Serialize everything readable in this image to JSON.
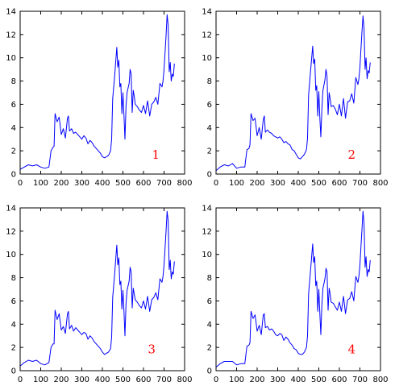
{
  "chart_data": [
    {
      "type": "line",
      "annotation": "1",
      "line_color": "#0000ff",
      "annotation_color": "#ff0000",
      "grid": false,
      "legend": "none",
      "xlim": [
        0,
        800
      ],
      "ylim": [
        0,
        14
      ],
      "xticks": [
        0,
        100,
        200,
        300,
        400,
        500,
        600,
        700,
        800
      ],
      "yticks": [
        0,
        2,
        4,
        6,
        8,
        10,
        12,
        14
      ],
      "annotation_pos": [
        660,
        1.3
      ],
      "x": [
        0,
        20,
        40,
        60,
        80,
        100,
        120,
        140,
        150,
        160,
        165,
        170,
        180,
        190,
        200,
        210,
        220,
        230,
        235,
        240,
        250,
        260,
        270,
        280,
        290,
        300,
        310,
        320,
        330,
        340,
        350,
        360,
        370,
        380,
        390,
        400,
        410,
        420,
        430,
        440,
        445,
        450,
        460,
        470,
        475,
        480,
        485,
        490,
        495,
        500,
        505,
        510,
        515,
        520,
        530,
        535,
        540,
        545,
        550,
        555,
        560,
        570,
        580,
        590,
        600,
        610,
        620,
        630,
        640,
        650,
        660,
        670,
        680,
        690,
        695,
        700,
        705,
        710,
        715,
        720,
        725,
        730,
        735,
        740,
        745,
        750
      ],
      "y": [
        0.4,
        0.6,
        0.8,
        0.7,
        0.8,
        0.6,
        0.5,
        0.6,
        2.0,
        2.3,
        2.4,
        5.2,
        4.5,
        4.9,
        3.4,
        3.9,
        3.1,
        4.8,
        5.0,
        3.7,
        3.9,
        3.5,
        3.6,
        3.4,
        3.2,
        3.0,
        3.3,
        3.1,
        2.6,
        2.9,
        2.7,
        2.4,
        2.2,
        2.0,
        1.8,
        1.5,
        1.4,
        1.5,
        1.6,
        2.0,
        3.0,
        6.5,
        8.5,
        10.9,
        9.2,
        9.8,
        7.5,
        7.8,
        5.2,
        7.0,
        5.0,
        3.0,
        5.8,
        7.0,
        7.8,
        9.0,
        8.6,
        5.3,
        7.2,
        6.7,
        6.0,
        5.8,
        5.5,
        5.3,
        5.9,
        5.2,
        6.3,
        5.0,
        6.0,
        6.2,
        6.6,
        6.0,
        7.8,
        7.5,
        8.0,
        9.0,
        10.5,
        11.9,
        13.7,
        12.8,
        8.8,
        9.6,
        8.0,
        8.6,
        8.4,
        9.5
      ]
    },
    {
      "type": "line",
      "annotation": "2",
      "line_color": "#0000ff",
      "annotation_color": "#ff0000",
      "grid": false,
      "legend": "none",
      "xlim": [
        0,
        800
      ],
      "ylim": [
        0,
        14
      ],
      "xticks": [
        0,
        100,
        200,
        300,
        400,
        500,
        600,
        700,
        800
      ],
      "yticks": [
        0,
        2,
        4,
        6,
        8,
        10,
        12,
        14
      ],
      "annotation_pos": [
        660,
        1.3
      ],
      "x": [
        0,
        20,
        40,
        60,
        80,
        100,
        120,
        140,
        150,
        160,
        165,
        170,
        180,
        190,
        200,
        210,
        220,
        230,
        235,
        240,
        250,
        260,
        270,
        280,
        290,
        300,
        310,
        320,
        330,
        340,
        350,
        360,
        370,
        380,
        390,
        400,
        410,
        420,
        430,
        440,
        445,
        450,
        460,
        470,
        475,
        480,
        485,
        490,
        495,
        500,
        505,
        510,
        515,
        520,
        530,
        535,
        540,
        545,
        550,
        555,
        560,
        570,
        580,
        590,
        600,
        610,
        620,
        630,
        640,
        650,
        660,
        670,
        680,
        690,
        695,
        700,
        705,
        710,
        715,
        720,
        725,
        730,
        735,
        740,
        745,
        750
      ],
      "y": [
        0.3,
        0.6,
        0.8,
        0.7,
        0.9,
        0.5,
        0.6,
        0.6,
        2.1,
        2.2,
        2.5,
        5.2,
        4.6,
        4.8,
        3.3,
        4.0,
        3.0,
        4.7,
        5.0,
        3.6,
        3.8,
        3.6,
        3.5,
        3.3,
        3.2,
        3.1,
        3.2,
        3.0,
        2.7,
        2.8,
        2.6,
        2.5,
        2.1,
        2.0,
        1.7,
        1.4,
        1.3,
        1.5,
        1.7,
        2.1,
        3.1,
        6.8,
        8.9,
        11.0,
        9.5,
        9.9,
        7.2,
        7.6,
        5.0,
        7.1,
        4.8,
        3.2,
        5.6,
        7.2,
        8.1,
        9.0,
        8.4,
        5.1,
        7.0,
        6.5,
        5.8,
        5.9,
        5.6,
        5.1,
        6.0,
        5.0,
        6.5,
        4.8,
        6.2,
        6.3,
        6.9,
        6.1,
        8.3,
        7.7,
        8.2,
        9.2,
        10.8,
        12.2,
        13.6,
        12.5,
        9.0,
        10.0,
        8.2,
        8.9,
        8.7,
        9.6
      ]
    },
    {
      "type": "line",
      "annotation": "3",
      "line_color": "#0000ff",
      "annotation_color": "#ff0000",
      "grid": false,
      "legend": "none",
      "xlim": [
        0,
        800
      ],
      "ylim": [
        0,
        14
      ],
      "xticks": [
        0,
        100,
        200,
        300,
        400,
        500,
        600,
        700,
        800
      ],
      "yticks": [
        0,
        2,
        4,
        6,
        8,
        10,
        12,
        14
      ],
      "annotation_pos": [
        640,
        1.5
      ],
      "x": [
        0,
        20,
        40,
        60,
        80,
        100,
        120,
        140,
        150,
        160,
        165,
        170,
        180,
        190,
        200,
        210,
        220,
        230,
        235,
        240,
        250,
        260,
        270,
        280,
        290,
        300,
        310,
        320,
        330,
        340,
        350,
        360,
        370,
        380,
        390,
        400,
        410,
        420,
        430,
        440,
        445,
        450,
        460,
        470,
        475,
        480,
        485,
        490,
        495,
        500,
        505,
        510,
        515,
        520,
        530,
        535,
        540,
        545,
        550,
        555,
        560,
        570,
        580,
        590,
        600,
        610,
        620,
        630,
        640,
        650,
        660,
        670,
        680,
        690,
        695,
        700,
        705,
        710,
        715,
        720,
        725,
        730,
        735,
        740,
        745,
        750
      ],
      "y": [
        0.4,
        0.7,
        0.9,
        0.8,
        0.9,
        0.6,
        0.5,
        0.7,
        2.0,
        2.3,
        2.3,
        5.2,
        4.4,
        4.9,
        3.5,
        3.8,
        3.2,
        4.9,
        5.1,
        3.6,
        3.9,
        3.4,
        3.7,
        3.5,
        3.3,
        3.1,
        3.3,
        3.2,
        2.7,
        3.0,
        2.8,
        2.5,
        2.3,
        2.1,
        1.9,
        1.6,
        1.4,
        1.5,
        1.6,
        1.9,
        2.9,
        6.3,
        8.4,
        10.8,
        9.1,
        9.7,
        7.4,
        7.7,
        5.3,
        6.9,
        5.1,
        3.0,
        5.7,
        6.9,
        7.7,
        8.9,
        8.5,
        5.4,
        7.1,
        6.6,
        6.1,
        5.9,
        5.6,
        5.4,
        6.0,
        5.3,
        6.4,
        5.1,
        6.1,
        6.3,
        6.7,
        6.1,
        7.9,
        7.6,
        8.1,
        9.1,
        10.6,
        12.0,
        13.7,
        12.9,
        8.7,
        9.5,
        7.9,
        8.5,
        8.3,
        9.4
      ]
    },
    {
      "type": "line",
      "annotation": "4",
      "line_color": "#0000ff",
      "annotation_color": "#ff0000",
      "grid": false,
      "legend": "none",
      "xlim": [
        0,
        800
      ],
      "ylim": [
        0,
        14
      ],
      "xticks": [
        0,
        100,
        200,
        300,
        400,
        500,
        600,
        700,
        800
      ],
      "yticks": [
        0,
        2,
        4,
        6,
        8,
        10,
        12,
        14
      ],
      "annotation_pos": [
        660,
        1.5
      ],
      "x": [
        0,
        20,
        40,
        60,
        80,
        100,
        120,
        140,
        150,
        160,
        165,
        170,
        180,
        190,
        200,
        210,
        220,
        230,
        235,
        240,
        250,
        260,
        270,
        280,
        290,
        300,
        310,
        320,
        330,
        340,
        350,
        360,
        370,
        380,
        390,
        400,
        410,
        420,
        430,
        440,
        445,
        450,
        460,
        470,
        475,
        480,
        485,
        490,
        495,
        500,
        505,
        510,
        515,
        520,
        530,
        535,
        540,
        545,
        550,
        555,
        560,
        570,
        580,
        590,
        600,
        610,
        620,
        630,
        640,
        650,
        660,
        670,
        680,
        690,
        695,
        700,
        705,
        710,
        715,
        720,
        725,
        730,
        735,
        740,
        745,
        750
      ],
      "y": [
        0.3,
        0.6,
        0.8,
        0.8,
        0.8,
        0.5,
        0.6,
        0.6,
        2.1,
        2.2,
        2.4,
        5.1,
        4.5,
        4.8,
        3.4,
        3.9,
        3.1,
        4.8,
        4.9,
        3.7,
        3.8,
        3.5,
        3.6,
        3.4,
        3.1,
        3.0,
        3.2,
        3.1,
        2.6,
        2.9,
        2.7,
        2.4,
        2.2,
        1.9,
        1.8,
        1.5,
        1.4,
        1.4,
        1.6,
        2.0,
        3.0,
        6.6,
        8.7,
        10.9,
        9.3,
        9.8,
        7.3,
        7.7,
        5.1,
        7.0,
        4.9,
        3.1,
        5.7,
        7.1,
        7.9,
        8.8,
        8.5,
        5.2,
        7.1,
        6.6,
        5.9,
        5.8,
        5.5,
        5.2,
        5.9,
        5.1,
        6.4,
        4.9,
        6.1,
        6.2,
        6.8,
        6.0,
        8.1,
        7.6,
        8.1,
        9.1,
        10.7,
        12.1,
        13.7,
        12.6,
        8.9,
        9.8,
        8.1,
        8.7,
        8.5,
        9.5
      ]
    }
  ]
}
